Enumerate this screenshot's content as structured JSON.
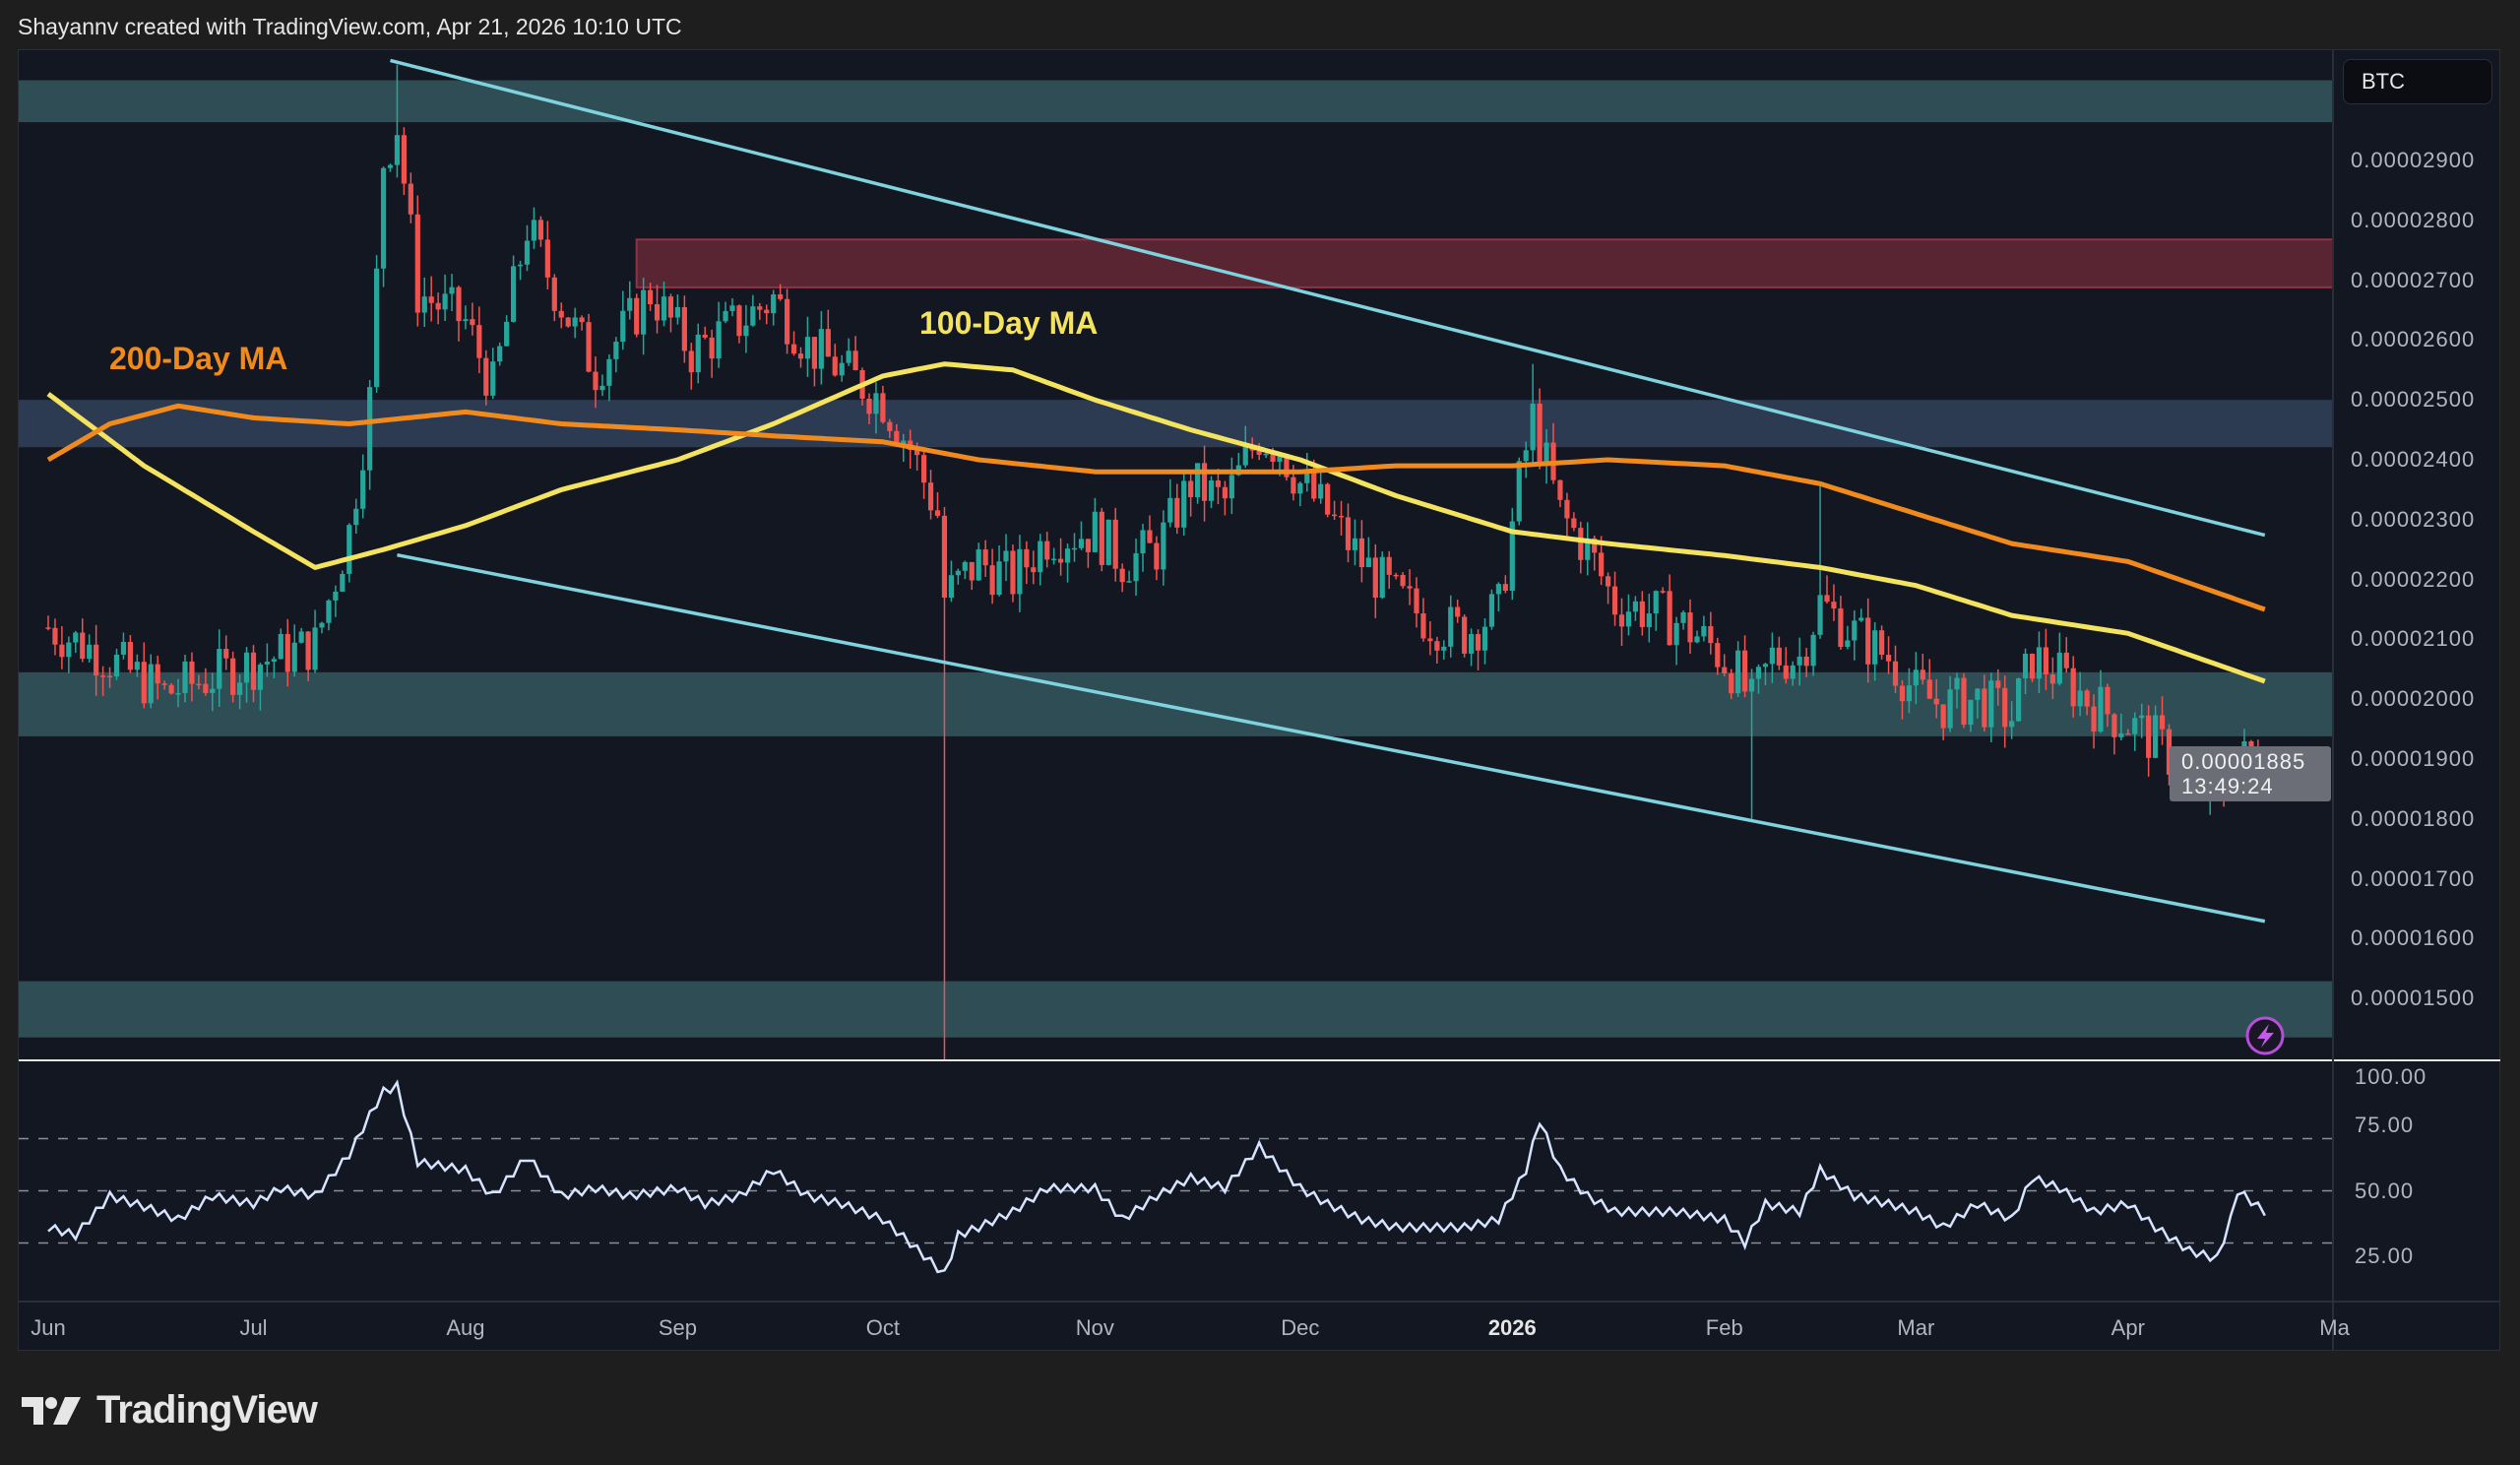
{
  "header": {
    "attribution": "Shayannv created with TradingView.com, Apr 21, 2026 10:10 UTC"
  },
  "symbol_button": "BTC",
  "footer": {
    "brand": "TradingView"
  },
  "colors": {
    "up": "#26a69a",
    "down": "#ef5350",
    "ma100": "#f3e35f",
    "ma200": "#f08a1c",
    "channel": "#7fd3de",
    "zone_teal": "#2f4d55",
    "zone_blue": "#2d3b52",
    "zone_red": "#5a2533",
    "rsi": "#d6e4ff"
  },
  "chart_data": [
    {
      "type": "candlestick",
      "title": "",
      "price_axis": {
        "ticks": [
          "0.00002900",
          "0.00002800",
          "0.00002700",
          "0.00002600",
          "0.00002500",
          "0.00002400",
          "0.00002300",
          "0.00002200",
          "0.00002100",
          "0.00002000",
          "0.00001900",
          "0.00001800",
          "0.00001700",
          "0.00001600",
          "0.00001500"
        ]
      },
      "x_axis": {
        "ticks": [
          {
            "label": "Jun",
            "date": "2025-06-01"
          },
          {
            "label": "Jul",
            "date": "2025-07-01"
          },
          {
            "label": "Aug",
            "date": "2025-08-01"
          },
          {
            "label": "Sep",
            "date": "2025-09-01"
          },
          {
            "label": "Oct",
            "date": "2025-10-01"
          },
          {
            "label": "Nov",
            "date": "2025-11-01"
          },
          {
            "label": "Dec",
            "date": "2025-12-01"
          },
          {
            "label": "2026",
            "date": "2026-01-01",
            "bold": true
          },
          {
            "label": "Feb",
            "date": "2026-02-01"
          },
          {
            "label": "Mar",
            "date": "2026-03-01"
          },
          {
            "label": "Apr",
            "date": "2026-04-01"
          },
          {
            "label": "Ma",
            "date": "2026-05-01"
          }
        ]
      },
      "current_price": {
        "value": "0.00001885",
        "countdown": "13:49:24"
      },
      "close": [
        [
          "2025-06-01",
          2.12e-05
        ],
        [
          "2025-06-08",
          2.08e-05
        ],
        [
          "2025-06-18",
          2.01e-05
        ],
        [
          "2025-06-28",
          2.05e-05
        ],
        [
          "2025-07-10",
          2.09e-05
        ],
        [
          "2025-07-15",
          2.28e-05
        ],
        [
          "2025-07-18",
          2.5e-05
        ],
        [
          "2025-07-20",
          2.9e-05
        ],
        [
          "2025-07-22",
          2.96e-05
        ],
        [
          "2025-07-25",
          2.68e-05
        ],
        [
          "2025-08-01",
          2.63e-05
        ],
        [
          "2025-08-05",
          2.52e-05
        ],
        [
          "2025-08-10",
          2.79e-05
        ],
        [
          "2025-08-15",
          2.66e-05
        ],
        [
          "2025-08-20",
          2.55e-05
        ],
        [
          "2025-08-25",
          2.63e-05
        ],
        [
          "2025-08-28",
          2.68e-05
        ],
        [
          "2025-09-03",
          2.58e-05
        ],
        [
          "2025-09-10",
          2.63e-05
        ],
        [
          "2025-09-15",
          2.67e-05
        ],
        [
          "2025-09-20",
          2.59e-05
        ],
        [
          "2025-09-25",
          2.55e-05
        ],
        [
          "2025-10-01",
          2.5e-05
        ],
        [
          "2025-10-05",
          2.42e-05
        ],
        [
          "2025-10-09",
          2.31e-05
        ],
        [
          "2025-10-10",
          2.17e-05
        ],
        [
          "2025-10-15",
          2.23e-05
        ],
        [
          "2025-10-20",
          2.2e-05
        ],
        [
          "2025-10-25",
          2.27e-05
        ],
        [
          "2025-11-01",
          2.28e-05
        ],
        [
          "2025-11-05",
          2.23e-05
        ],
        [
          "2025-11-10",
          2.25e-05
        ],
        [
          "2025-11-15",
          2.36e-05
        ],
        [
          "2025-11-20",
          2.33e-05
        ],
        [
          "2025-11-25",
          2.44e-05
        ],
        [
          "2025-11-28",
          2.42e-05
        ],
        [
          "2025-12-01",
          2.36e-05
        ],
        [
          "2025-12-05",
          2.31e-05
        ],
        [
          "2025-12-10",
          2.23e-05
        ],
        [
          "2025-12-15",
          2.17e-05
        ],
        [
          "2025-12-20",
          2.13e-05
        ],
        [
          "2025-12-25",
          2.11e-05
        ],
        [
          "2025-12-30",
          2.15e-05
        ],
        [
          "2026-01-02",
          2.36e-05
        ],
        [
          "2026-01-04",
          2.47e-05
        ],
        [
          "2026-01-08",
          2.31e-05
        ],
        [
          "2026-01-12",
          2.25e-05
        ],
        [
          "2026-01-16",
          2.16e-05
        ],
        [
          "2026-01-20",
          2.15e-05
        ],
        [
          "2026-01-25",
          2.13e-05
        ],
        [
          "2026-01-30",
          2.09e-05
        ],
        [
          "2026-02-03",
          2.04e-05
        ],
        [
          "2026-02-05",
          1.99e-05
        ],
        [
          "2026-02-08",
          2.07e-05
        ],
        [
          "2026-02-12",
          2.07e-05
        ],
        [
          "2026-02-15",
          2.16e-05
        ],
        [
          "2026-02-20",
          2.11e-05
        ],
        [
          "2026-02-25",
          2.07e-05
        ],
        [
          "2026-03-01",
          2.01e-05
        ],
        [
          "2026-03-05",
          1.99e-05
        ],
        [
          "2026-03-10",
          2e-05
        ],
        [
          "2026-03-15",
          1.97e-05
        ],
        [
          "2026-03-18",
          2.07e-05
        ],
        [
          "2026-03-22",
          2.04e-05
        ],
        [
          "2026-03-27",
          1.99e-05
        ],
        [
          "2026-04-01",
          1.96e-05
        ],
        [
          "2026-04-05",
          1.93e-05
        ],
        [
          "2026-04-10",
          1.87e-05
        ],
        [
          "2026-04-13",
          1.84e-05
        ],
        [
          "2026-04-15",
          1.85e-05
        ],
        [
          "2026-04-16",
          1.92e-05
        ],
        [
          "2026-04-18",
          1.9e-05
        ],
        [
          "2026-04-21",
          1.885e-05
        ]
      ],
      "notable_wicks": [
        {
          "date": "2025-07-22",
          "high": 3.06e-05
        },
        {
          "date": "2025-10-10",
          "low": 1.39e-05
        },
        {
          "date": "2026-01-04",
          "high": 2.56e-05
        },
        {
          "date": "2026-02-05",
          "low": 1.8e-05
        },
        {
          "date": "2026-02-15",
          "high": 2.36e-05
        }
      ],
      "moving_averages": [
        {
          "name": "100-Day MA",
          "color_key": "ma100",
          "values": [
            [
              "2025-06-01",
              2.51e-05
            ],
            [
              "2025-06-15",
              2.39e-05
            ],
            [
              "2025-07-01",
              2.28e-05
            ],
            [
              "2025-07-10",
              2.22e-05
            ],
            [
              "2025-07-20",
              2.25e-05
            ],
            [
              "2025-08-01",
              2.29e-05
            ],
            [
              "2025-08-15",
              2.35e-05
            ],
            [
              "2025-09-01",
              2.4e-05
            ],
            [
              "2025-09-15",
              2.46e-05
            ],
            [
              "2025-10-01",
              2.54e-05
            ],
            [
              "2025-10-10",
              2.56e-05
            ],
            [
              "2025-10-20",
              2.55e-05
            ],
            [
              "2025-11-01",
              2.5e-05
            ],
            [
              "2025-11-15",
              2.45e-05
            ],
            [
              "2025-12-01",
              2.4e-05
            ],
            [
              "2025-12-15",
              2.34e-05
            ],
            [
              "2026-01-01",
              2.28e-05
            ],
            [
              "2026-01-15",
              2.26e-05
            ],
            [
              "2026-02-01",
              2.24e-05
            ],
            [
              "2026-02-15",
              2.22e-05
            ],
            [
              "2026-03-01",
              2.19e-05
            ],
            [
              "2026-03-15",
              2.14e-05
            ],
            [
              "2026-04-01",
              2.11e-05
            ],
            [
              "2026-04-21",
              2.03e-05
            ]
          ]
        },
        {
          "name": "200-Day MA",
          "color_key": "ma200",
          "values": [
            [
              "2025-06-01",
              2.4e-05
            ],
            [
              "2025-06-10",
              2.46e-05
            ],
            [
              "2025-06-20",
              2.49e-05
            ],
            [
              "2025-07-01",
              2.47e-05
            ],
            [
              "2025-07-15",
              2.46e-05
            ],
            [
              "2025-08-01",
              2.48e-05
            ],
            [
              "2025-08-15",
              2.46e-05
            ],
            [
              "2025-09-01",
              2.45e-05
            ],
            [
              "2025-09-15",
              2.44e-05
            ],
            [
              "2025-10-01",
              2.43e-05
            ],
            [
              "2025-10-15",
              2.4e-05
            ],
            [
              "2025-11-01",
              2.38e-05
            ],
            [
              "2025-11-15",
              2.38e-05
            ],
            [
              "2025-12-01",
              2.38e-05
            ],
            [
              "2025-12-15",
              2.39e-05
            ],
            [
              "2026-01-01",
              2.39e-05
            ],
            [
              "2026-01-15",
              2.4e-05
            ],
            [
              "2026-02-01",
              2.39e-05
            ],
            [
              "2026-02-15",
              2.36e-05
            ],
            [
              "2026-03-01",
              2.31e-05
            ],
            [
              "2026-03-15",
              2.26e-05
            ],
            [
              "2026-04-01",
              2.23e-05
            ],
            [
              "2026-04-21",
              2.15e-05
            ]
          ]
        }
      ],
      "zones": [
        {
          "color_key": "zone_teal",
          "from": 2.964e-05,
          "to": 3.034e-05
        },
        {
          "color_key": "zone_red",
          "from": 2.688e-05,
          "to": 2.768e-05,
          "start": "2025-08-26"
        },
        {
          "color_key": "zone_blue",
          "from": 2.421e-05,
          "to": 2.5e-05
        },
        {
          "color_key": "zone_teal",
          "from": 1.938e-05,
          "to": 2.045e-05
        },
        {
          "color_key": "zone_teal",
          "from": 1.435e-05,
          "to": 1.529e-05
        }
      ],
      "trendlines": [
        {
          "name": "channel-upper",
          "from": [
            "2025-07-21",
            3.067e-05
          ],
          "to": [
            "2026-04-21",
            2.274e-05
          ]
        },
        {
          "name": "channel-lower",
          "from": [
            "2025-07-22",
            2.241e-05
          ],
          "to": [
            "2026-04-21",
            1.629e-05
          ]
        }
      ]
    },
    {
      "type": "line",
      "indicator": "RSI",
      "ylim": [
        0,
        100
      ],
      "y_ticks": [
        "100.00",
        "75.00",
        "50.00",
        "25.00"
      ],
      "bands": [
        70,
        50,
        30
      ],
      "values": [
        [
          "2025-06-01",
          36
        ],
        [
          "2025-06-05",
          33
        ],
        [
          "2025-06-10",
          48
        ],
        [
          "2025-06-15",
          44
        ],
        [
          "2025-06-20",
          39
        ],
        [
          "2025-06-25",
          48
        ],
        [
          "2025-07-01",
          45
        ],
        [
          "2025-07-05",
          51
        ],
        [
          "2025-07-10",
          48
        ],
        [
          "2025-07-15",
          64
        ],
        [
          "2025-07-18",
          79
        ],
        [
          "2025-07-20",
          88
        ],
        [
          "2025-07-22",
          90
        ],
        [
          "2025-07-25",
          61
        ],
        [
          "2025-08-01",
          58
        ],
        [
          "2025-08-05",
          48
        ],
        [
          "2025-08-10",
          63
        ],
        [
          "2025-08-15",
          48
        ],
        [
          "2025-08-20",
          51
        ],
        [
          "2025-08-25",
          48
        ],
        [
          "2025-09-01",
          51
        ],
        [
          "2025-09-05",
          45
        ],
        [
          "2025-09-10",
          48
        ],
        [
          "2025-09-15",
          58
        ],
        [
          "2025-09-20",
          48
        ],
        [
          "2025-09-25",
          45
        ],
        [
          "2025-10-01",
          39
        ],
        [
          "2025-10-05",
          30
        ],
        [
          "2025-10-10",
          18
        ],
        [
          "2025-10-12",
          33
        ],
        [
          "2025-10-15",
          36
        ],
        [
          "2025-10-20",
          42
        ],
        [
          "2025-10-25",
          51
        ],
        [
          "2025-11-01",
          51
        ],
        [
          "2025-11-05",
          39
        ],
        [
          "2025-11-10",
          48
        ],
        [
          "2025-11-15",
          55
        ],
        [
          "2025-11-20",
          51
        ],
        [
          "2025-11-25",
          67
        ],
        [
          "2025-12-01",
          51
        ],
        [
          "2025-12-05",
          45
        ],
        [
          "2025-12-10",
          39
        ],
        [
          "2025-12-15",
          36
        ],
        [
          "2025-12-20",
          36
        ],
        [
          "2025-12-25",
          36
        ],
        [
          "2025-12-30",
          39
        ],
        [
          "2026-01-03",
          58
        ],
        [
          "2026-01-05",
          77
        ],
        [
          "2026-01-08",
          58
        ],
        [
          "2026-01-12",
          48
        ],
        [
          "2026-01-16",
          42
        ],
        [
          "2026-01-20",
          42
        ],
        [
          "2026-01-25",
          42
        ],
        [
          "2026-02-01",
          39
        ],
        [
          "2026-02-04",
          30
        ],
        [
          "2026-02-07",
          45
        ],
        [
          "2026-02-12",
          42
        ],
        [
          "2026-02-15",
          58
        ],
        [
          "2026-02-20",
          48
        ],
        [
          "2026-02-25",
          45
        ],
        [
          "2026-03-01",
          42
        ],
        [
          "2026-03-05",
          36
        ],
        [
          "2026-03-10",
          45
        ],
        [
          "2026-03-15",
          39
        ],
        [
          "2026-03-18",
          55
        ],
        [
          "2026-03-22",
          51
        ],
        [
          "2026-03-27",
          42
        ],
        [
          "2026-04-01",
          45
        ],
        [
          "2026-04-05",
          36
        ],
        [
          "2026-04-10",
          27
        ],
        [
          "2026-04-14",
          24
        ],
        [
          "2026-04-16",
          39
        ],
        [
          "2026-04-17",
          50
        ],
        [
          "2026-04-21",
          42
        ]
      ]
    }
  ]
}
